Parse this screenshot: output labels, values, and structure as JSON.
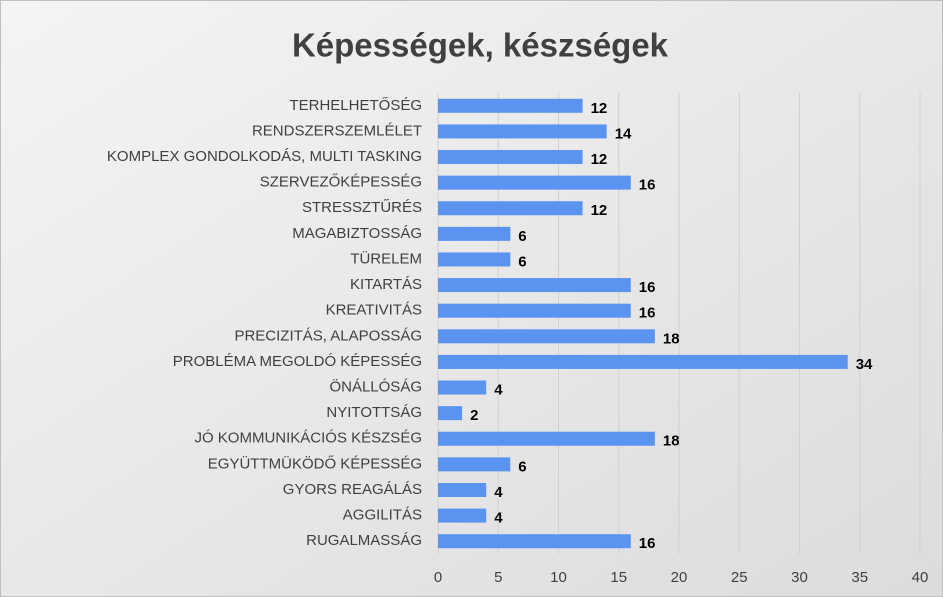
{
  "chart_data": {
    "type": "bar",
    "horizontal": true,
    "title": "Képességek, készségek",
    "categories": [
      "TERHELHETŐSÉG",
      "RENDSZERSZEMLÉLET",
      "KOMPLEX GONDOLKODÁS, MULTI TASKING",
      "SZERVEZŐKÉPESSÉG",
      "STRESSZTŰRÉS",
      "MAGABIZTOSSÁG",
      "TÜRELEM",
      "KITARTÁS",
      "KREATIVITÁS",
      "PRECIZITÁS, ALAPOSSÁG",
      "PROBLÉMA MEGOLDÓ KÉPESSÉG",
      "ÖNÁLLÓSÁG",
      "NYITOTTSÁG",
      "JÓ KOMMUNIKÁCIÓS KÉSZSÉG",
      "EGYÜTTMÜKÖDŐ KÉPESSÉG",
      "GYORS REAGÁLÁS",
      "AGGILITÁS",
      "RUGALMASSÁG"
    ],
    "values": [
      12,
      14,
      12,
      16,
      12,
      6,
      6,
      16,
      16,
      18,
      34,
      4,
      2,
      18,
      6,
      4,
      4,
      16
    ],
    "color": "#5b93f0",
    "xlim": [
      0,
      40
    ],
    "xticks": [
      0,
      5,
      10,
      15,
      20,
      25,
      30,
      35,
      40
    ],
    "grid": true
  }
}
